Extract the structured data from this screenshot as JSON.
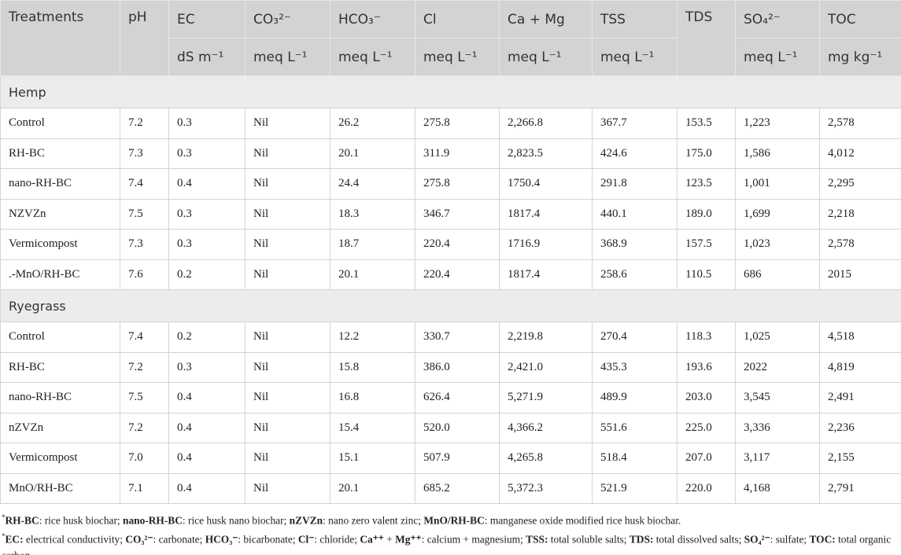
{
  "table": {
    "columns": [
      {
        "name": "Treatments"
      },
      {
        "name": "pH"
      },
      {
        "name": "EC",
        "unit": "dS m⁻¹"
      },
      {
        "name": "CO₃²⁻",
        "unit": "meq L⁻¹"
      },
      {
        "name": "HCO₃⁻",
        "unit": "meq L⁻¹"
      },
      {
        "name": "Cl",
        "unit": "meq L⁻¹"
      },
      {
        "name": "Ca + Mg",
        "unit": "meq L⁻¹"
      },
      {
        "name": "TSS",
        "unit": "meq L⁻¹"
      },
      {
        "name": "TDS"
      },
      {
        "name": "SO₄²⁻",
        "unit": "meq L⁻¹"
      },
      {
        "name": "TOC",
        "unit": "mg kg⁻¹"
      }
    ],
    "groups": [
      {
        "name": "Hemp",
        "rows": [
          [
            "Control",
            "7.2",
            "0.3",
            "Nil",
            "26.2",
            "275.8",
            "2,266.8",
            "367.7",
            "153.5",
            "1,223",
            "2,578"
          ],
          [
            "RH-BC",
            "7.3",
            "0.3",
            "Nil",
            "20.1",
            "311.9",
            "2,823.5",
            "424.6",
            "175.0",
            "1,586",
            "4,012"
          ],
          [
            "nano-RH-BC",
            "7.4",
            "0.4",
            "Nil",
            "24.4",
            "275.8",
            "1750.4",
            "291.8",
            "123.5",
            "1,001",
            "2,295"
          ],
          [
            "NZVZn",
            "7.5",
            "0.3",
            "Nil",
            "18.3",
            "346.7",
            "1817.4",
            "440.1",
            "189.0",
            "1,699",
            "2,218"
          ],
          [
            "Vermicompost",
            "7.3",
            "0.3",
            "Nil",
            "18.7",
            "220.4",
            "1716.9",
            "368.9",
            "157.5",
            "1,023",
            "2,578"
          ],
          [
            ".-MnO/RH-BC",
            "7.6",
            "0.2",
            "Nil",
            "20.1",
            "220.4",
            "1817.4",
            "258.6",
            "110.5",
            "686",
            "2015"
          ]
        ]
      },
      {
        "name": "Ryegrass",
        "rows": [
          [
            "Control",
            "7.4",
            "0.2",
            "Nil",
            "12.2",
            "330.7",
            "2,219.8",
            "270.4",
            "118.3",
            "1,025",
            "4,518"
          ],
          [
            "RH-BC",
            "7.2",
            "0.3",
            "Nil",
            "15.8",
            "386.0",
            "2,421.0",
            "435.3",
            "193.6",
            "2022",
            "4,819"
          ],
          [
            "nano-RH-BC",
            "7.5",
            "0.4",
            "Nil",
            "16.8",
            "626.4",
            "5,271.9",
            "489.9",
            "203.0",
            "3,545",
            "2,491"
          ],
          [
            "nZVZn",
            "7.2",
            "0.4",
            "Nil",
            "15.4",
            "520.0",
            "4,366.2",
            "551.6",
            "225.0",
            "3,336",
            "2,236"
          ],
          [
            "Vermicompost",
            "7.0",
            "0.4",
            "Nil",
            "15.1",
            "507.9",
            "4,265.8",
            "518.4",
            "207.0",
            "3,117",
            "2,155"
          ],
          [
            "MnO/RH-BC",
            "7.1",
            "0.4",
            "Nil",
            "20.1",
            "685.2",
            "5,372.3",
            "521.9",
            "220.0",
            "4,168",
            "2,791"
          ]
        ]
      }
    ],
    "footnotes": [
      [
        {
          "text": "*",
          "sup": true
        },
        {
          "text": "RH-BC",
          "bold": true
        },
        {
          "text": ": rice husk biochar; "
        },
        {
          "text": "nano-RH-BC",
          "bold": true
        },
        {
          "text": ": rice husk nano biochar; "
        },
        {
          "text": "nZVZn",
          "bold": true
        },
        {
          "text": ": nano zero valent zinc; "
        },
        {
          "text": "MnO/RH-BC",
          "bold": true
        },
        {
          "text": ": manganese oxide modified rice husk biochar."
        }
      ],
      [
        {
          "text": "*",
          "sup": true
        },
        {
          "text": "EC:",
          "bold": true
        },
        {
          "text": " electrical conductivity; "
        },
        {
          "text": "CO₃²⁻",
          "bold": true
        },
        {
          "text": ": carbonate; "
        },
        {
          "text": "HCO₃⁻",
          "bold": true
        },
        {
          "text": ": bicarbonate; "
        },
        {
          "text": "Cl⁻",
          "bold": true
        },
        {
          "text": ": chloride; "
        },
        {
          "text": "Ca⁺⁺",
          "bold": true
        },
        {
          "text": " + "
        },
        {
          "text": "Mg⁺⁺",
          "bold": true
        },
        {
          "text": ": calcium + magnesium; "
        },
        {
          "text": "TSS:",
          "bold": true
        },
        {
          "text": " total soluble salts; "
        },
        {
          "text": "TDS:",
          "bold": true
        },
        {
          "text": " total dissolved salts; "
        },
        {
          "text": "SO₄²⁻",
          "bold": true
        },
        {
          "text": ": sulfate; "
        },
        {
          "text": "TOC:",
          "bold": true
        },
        {
          "text": " total organic carbon."
        }
      ]
    ]
  }
}
